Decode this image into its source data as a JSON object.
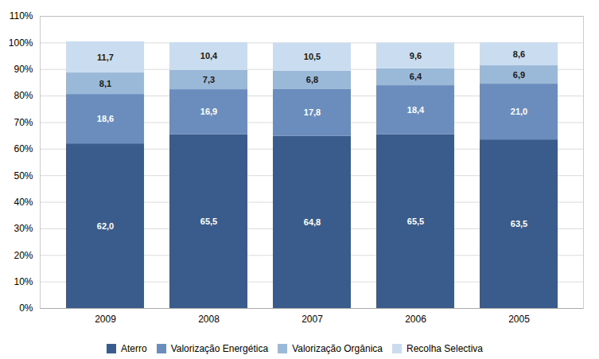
{
  "chart_data": {
    "type": "bar",
    "stacked": true,
    "data_labels": true,
    "grid": true,
    "legend": "bottom",
    "categories": [
      "2009",
      "2008",
      "2007",
      "2006",
      "2005"
    ],
    "series": [
      {
        "name": "Aterro",
        "color": "#3A5C8C",
        "values": [
          62.0,
          65.5,
          64.8,
          65.5,
          63.5
        ],
        "value_labels": [
          "62,0",
          "65,5",
          "64,8",
          "65,5",
          "63,5"
        ]
      },
      {
        "name": "Valorização Energética",
        "color": "#6B8DBE",
        "values": [
          18.6,
          16.9,
          17.8,
          18.4,
          21.0
        ],
        "value_labels": [
          "18,6",
          "16,9",
          "17,8",
          "18,4",
          "21,0"
        ]
      },
      {
        "name": "Valorização Orgânica",
        "color": "#9AB8D8",
        "values": [
          8.1,
          7.3,
          6.8,
          6.4,
          6.9
        ],
        "value_labels": [
          "8,1",
          "7,3",
          "6,8",
          "6,4",
          "6,9"
        ]
      },
      {
        "name": "Recolha Selectiva",
        "color": "#C9DCF0",
        "values": [
          11.7,
          10.4,
          10.5,
          9.6,
          8.6
        ],
        "value_labels": [
          "11,7",
          "10,4",
          "10,5",
          "9,6",
          "8,6"
        ]
      }
    ],
    "ylim": [
      0,
      110
    ],
    "yticks": [
      {
        "value": 0,
        "label": "0%"
      },
      {
        "value": 10,
        "label": "10%"
      },
      {
        "value": 20,
        "label": "20%"
      },
      {
        "value": 30,
        "label": "30%"
      },
      {
        "value": 40,
        "label": "40%"
      },
      {
        "value": 50,
        "label": "50%"
      },
      {
        "value": 60,
        "label": "60%"
      },
      {
        "value": 70,
        "label": "70%"
      },
      {
        "value": 80,
        "label": "80%"
      },
      {
        "value": 90,
        "label": "90%"
      },
      {
        "value": 100,
        "label": "100%"
      },
      {
        "value": 110,
        "label": "110%"
      }
    ]
  }
}
